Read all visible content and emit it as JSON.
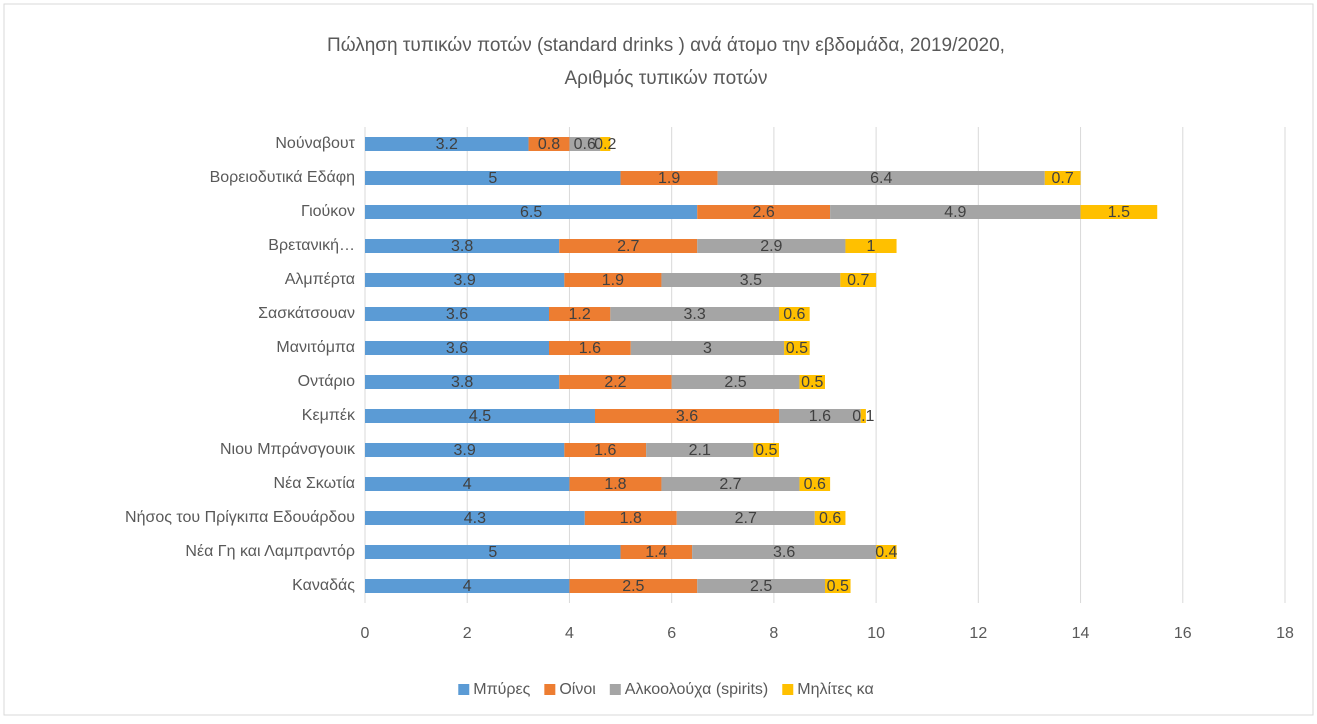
{
  "chart_data": {
    "type": "stacked_bar_horizontal",
    "title": "Πώληση τυπικών ποτών (standard drinks ) ανά άτομο την εβδομάδα, 2019/2020,",
    "subtitle": "Αριθμός τυπικών ποτών",
    "categories": [
      "Νούναβουτ",
      "Βορειοδυτικά Εδάφη",
      "Γιούκον",
      "Βρετανική…",
      "Αλμπέρτα",
      "Σασκάτσουαν",
      "Μανιτόμπα",
      "Οντάριο",
      "Κεμπέκ",
      "Νιου Μπράνσγουικ",
      "Νέα Σκωτία",
      "Νήσος του Πρίγκιπα Εδουάρδου",
      "Νέα Γη και Λαμπραντόρ",
      "Καναδάς"
    ],
    "series": [
      {
        "name": "Μπύρες",
        "color": "#5b9bd5",
        "values": [
          3.2,
          5,
          6.5,
          3.8,
          3.9,
          3.6,
          3.6,
          3.8,
          4.5,
          3.9,
          4,
          4.3,
          5,
          4
        ]
      },
      {
        "name": "Οίνοι",
        "color": "#ed7d31",
        "values": [
          0.8,
          1.9,
          2.6,
          2.7,
          1.9,
          1.2,
          1.6,
          2.2,
          3.6,
          1.6,
          1.8,
          1.8,
          1.4,
          2.5
        ]
      },
      {
        "name": "Αλκοολούχα (spirits)",
        "color": "#a5a5a5",
        "values": [
          0.6,
          6.4,
          4.9,
          2.9,
          3.5,
          3.3,
          3,
          2.5,
          1.6,
          2.1,
          2.7,
          2.7,
          3.6,
          2.5
        ]
      },
      {
        "name": "Μηλίτες κα",
        "color": "#ffc000",
        "values": [
          0.2,
          0.7,
          1.5,
          1,
          0.7,
          0.6,
          0.5,
          0.5,
          0.1,
          0.5,
          0.6,
          0.6,
          0.4,
          0.5
        ]
      }
    ],
    "xlim": [
      0,
      18
    ],
    "xticks": [
      0,
      2,
      4,
      6,
      8,
      10,
      12,
      14,
      16,
      18
    ],
    "grid": true,
    "legend": "bottom"
  }
}
